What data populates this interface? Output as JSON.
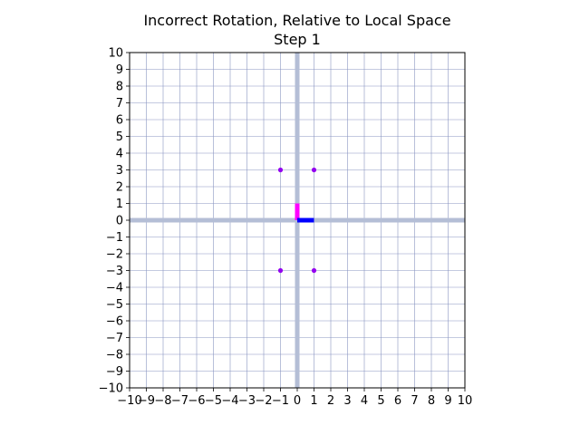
{
  "chart_data": {
    "type": "scatter",
    "title": "Incorrect Rotation, Relative to Local Space",
    "subtitle": "Step 1",
    "xlabel": "",
    "ylabel": "",
    "xlim": [
      -10,
      10
    ],
    "ylim": [
      -10,
      10
    ],
    "grid": true,
    "xticks": [
      -10,
      -9,
      -8,
      -7,
      -6,
      -5,
      -4,
      -3,
      -2,
      -1,
      0,
      1,
      2,
      3,
      4,
      5,
      6,
      7,
      8,
      9,
      10
    ],
    "yticks": [
      -10,
      -9,
      -8,
      -7,
      -6,
      -5,
      -4,
      -3,
      -2,
      -1,
      0,
      1,
      2,
      3,
      4,
      5,
      6,
      7,
      8,
      9,
      10
    ],
    "xtick_labels": [
      "−10",
      "−9",
      "−8",
      "−7",
      "−6",
      "−5",
      "−4",
      "−3",
      "−2",
      "−1",
      "0",
      "1",
      "2",
      "3",
      "4",
      "5",
      "6",
      "7",
      "8",
      "9",
      "10"
    ],
    "ytick_labels": [
      "−10",
      "−9",
      "−8",
      "−7",
      "−6",
      "−5",
      "−4",
      "−3",
      "−2",
      "−1",
      "0",
      "1",
      "2",
      "3",
      "4",
      "5",
      "6",
      "7",
      "8",
      "9",
      "10"
    ],
    "points": [
      {
        "x": -1,
        "y": 3
      },
      {
        "x": 1,
        "y": 3
      },
      {
        "x": -1,
        "y": -3
      },
      {
        "x": 1,
        "y": -3
      }
    ],
    "local_axes": [
      {
        "axis": "y",
        "from": [
          0,
          0
        ],
        "to": [
          0,
          1
        ]
      },
      {
        "axis": "x",
        "from": [
          0,
          0
        ],
        "to": [
          1,
          0
        ]
      }
    ],
    "colors": {
      "grid": "#8a95c2",
      "world_axis": "#b4bed6",
      "points": "#9400f0",
      "local_y_axis": "#ff00ff",
      "local_x_axis": "#0000ff"
    }
  }
}
